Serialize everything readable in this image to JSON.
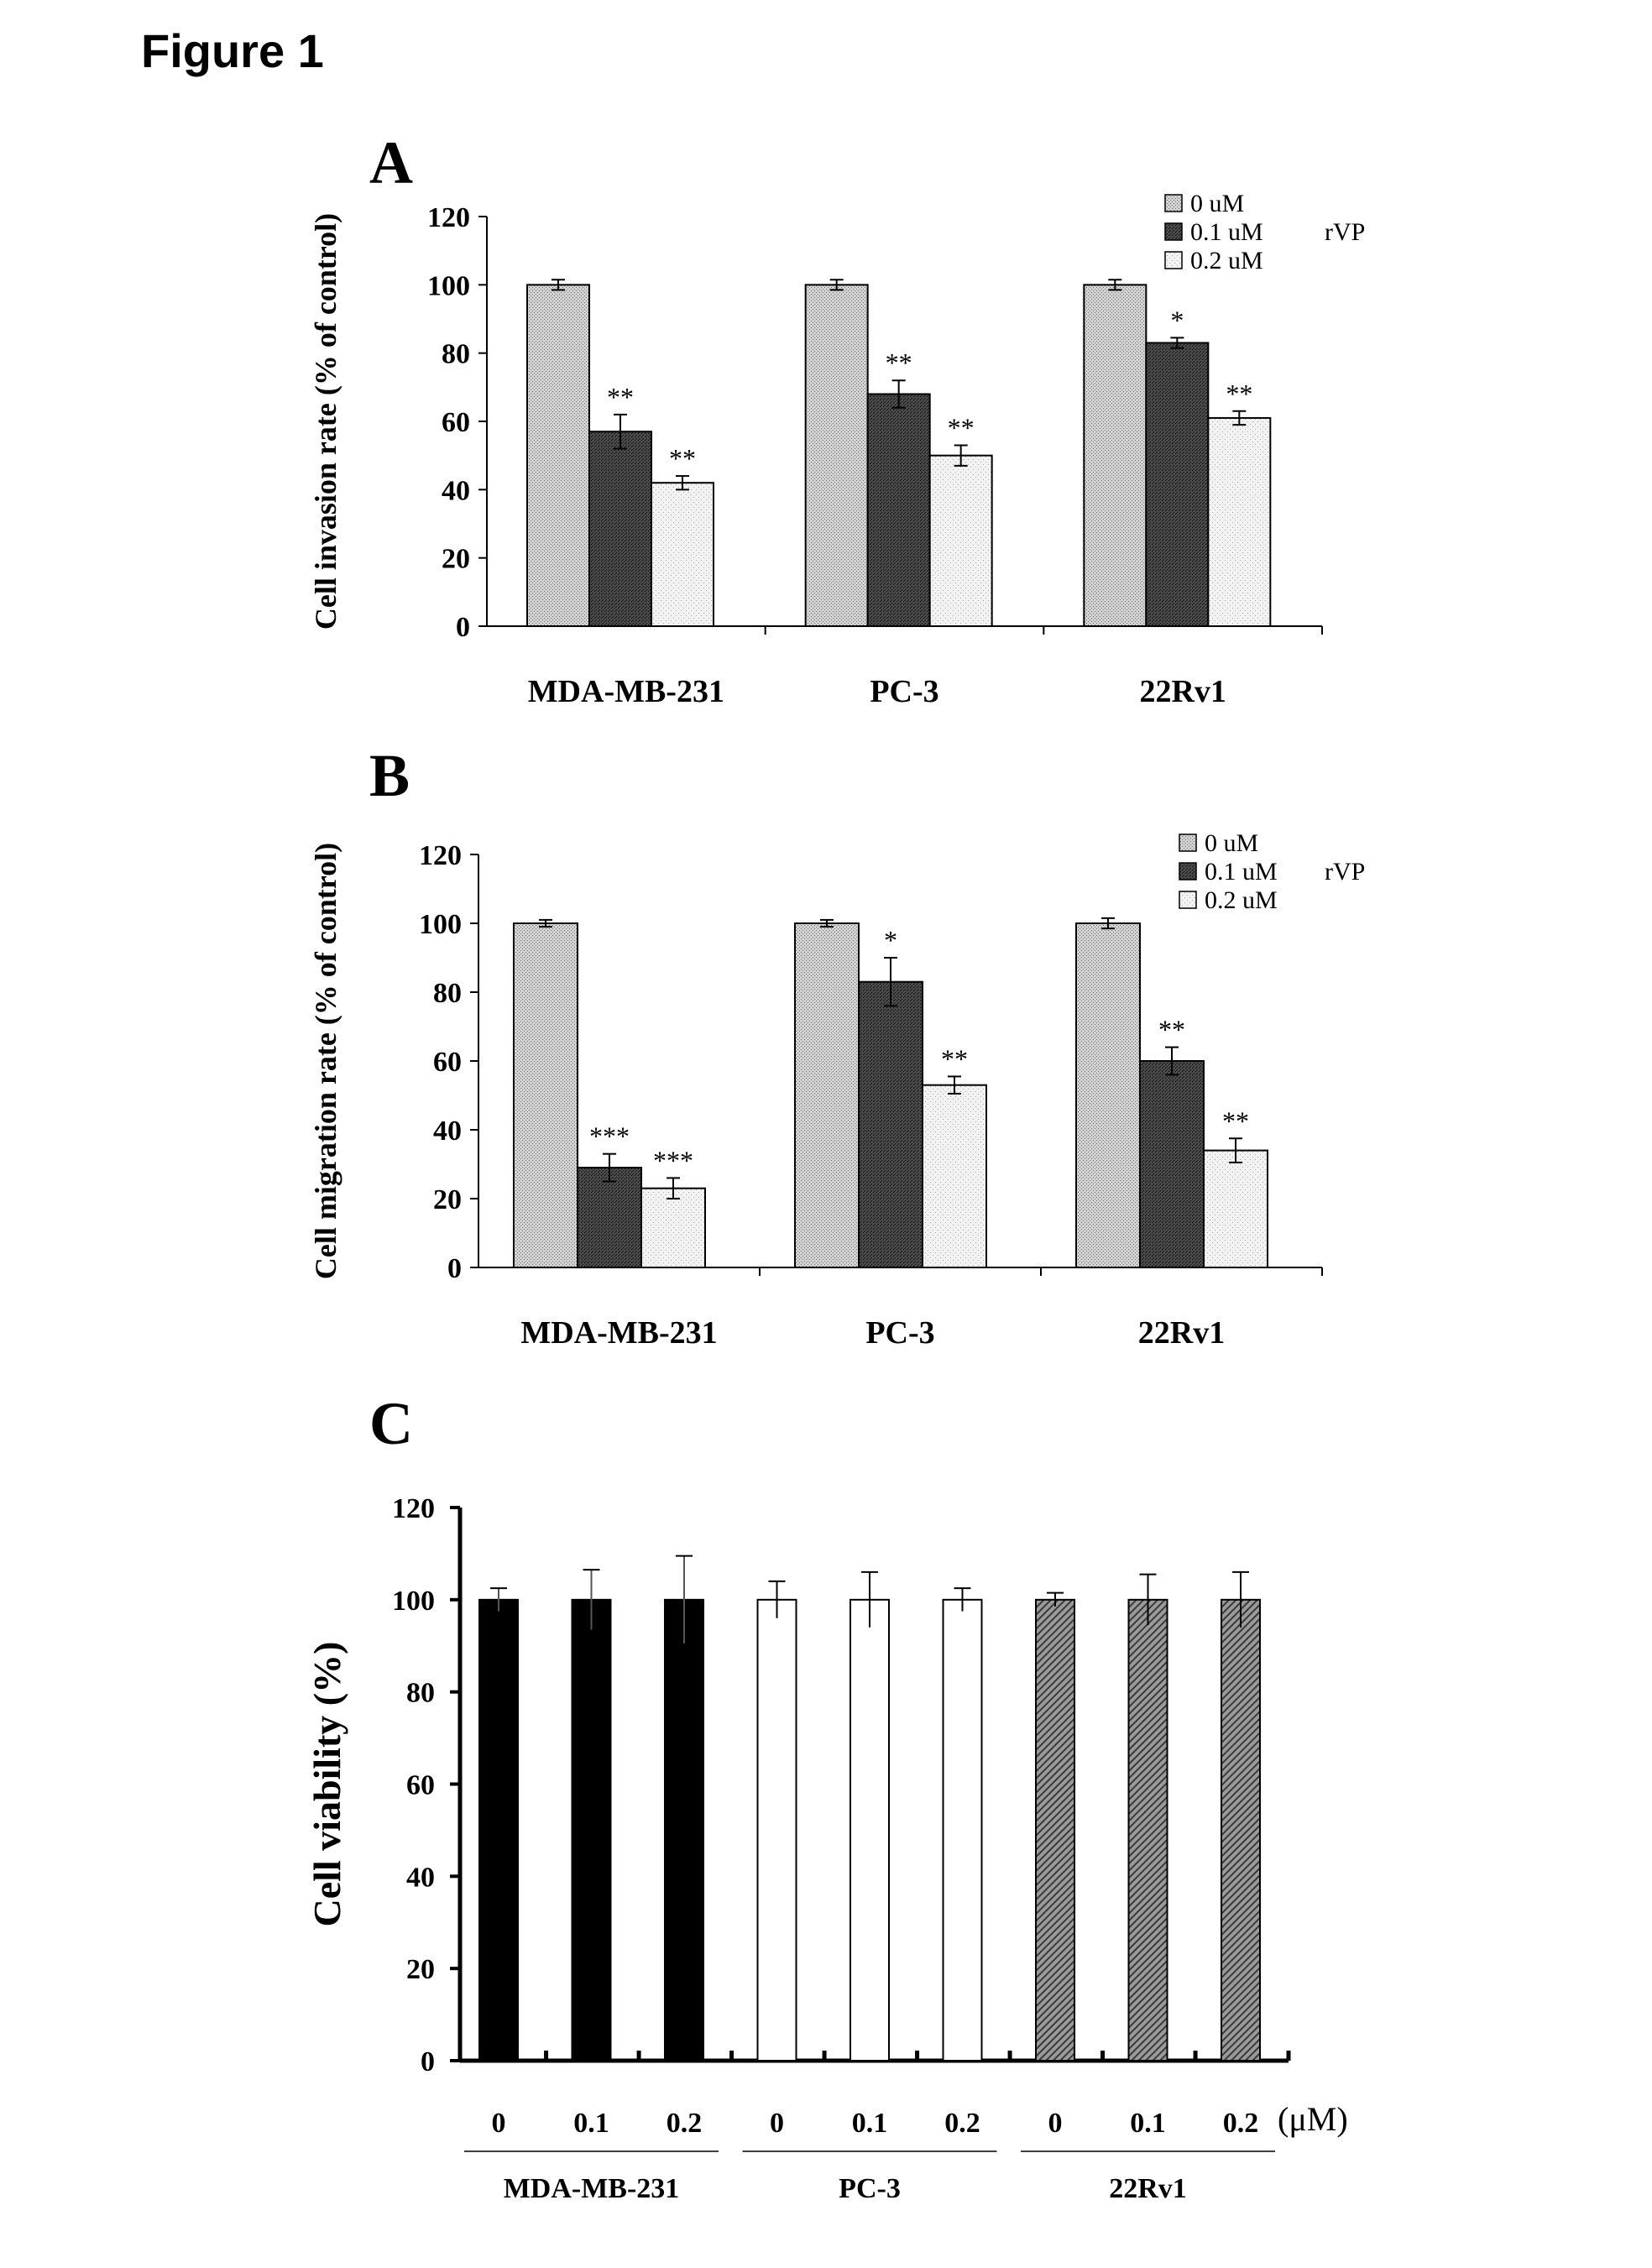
{
  "figure_title": "Figure 1",
  "chart_data": [
    {
      "panel": "A",
      "type": "bar",
      "ylabel": "Cell invasion rate (% of control)",
      "ylim": [
        0,
        120
      ],
      "yticks": [
        "0",
        "20",
        "40",
        "60",
        "80",
        "100",
        "120"
      ],
      "categories": [
        "MDA-MB-231",
        "PC-3",
        "22Rv1"
      ],
      "legend_title": "rVP",
      "legend_position": "top-right",
      "series": [
        {
          "name": "0 uM",
          "pattern": "light-dotted",
          "values": [
            100,
            100,
            100
          ],
          "errors": [
            1.5,
            1.5,
            1.5
          ],
          "sig": [
            "",
            "",
            ""
          ]
        },
        {
          "name": "0.1 uM",
          "pattern": "dark-hatched",
          "values": [
            57,
            68,
            83
          ],
          "errors": [
            5,
            4,
            1.5
          ],
          "sig": [
            "**",
            "**",
            "*"
          ]
        },
        {
          "name": "0.2 uM",
          "pattern": "white-dotted",
          "values": [
            42,
            50,
            61
          ],
          "errors": [
            2,
            3,
            2
          ],
          "sig": [
            "**",
            "**",
            "**"
          ]
        }
      ]
    },
    {
      "panel": "B",
      "type": "bar",
      "ylabel": "Cell migration rate (% of control)",
      "ylim": [
        0,
        120
      ],
      "yticks": [
        "0",
        "20",
        "40",
        "60",
        "80",
        "100",
        "120"
      ],
      "categories": [
        "MDA-MB-231",
        "PC-3",
        "22Rv1"
      ],
      "legend_title": "rVP",
      "legend_position": "top-right",
      "series": [
        {
          "name": "0 uM",
          "pattern": "light-dotted",
          "values": [
            100,
            100,
            100
          ],
          "errors": [
            1,
            1,
            1.5
          ],
          "sig": [
            "",
            "",
            ""
          ]
        },
        {
          "name": "0.1 uM",
          "pattern": "dark-hatched",
          "values": [
            29,
            83,
            60
          ],
          "errors": [
            4,
            7,
            4
          ],
          "sig": [
            "***",
            "*",
            "**"
          ]
        },
        {
          "name": "0.2 uM",
          "pattern": "white-dotted",
          "values": [
            23,
            53,
            34
          ],
          "errors": [
            3,
            2.5,
            3.5
          ],
          "sig": [
            "***",
            "**",
            "**"
          ]
        }
      ]
    },
    {
      "panel": "C",
      "type": "bar",
      "ylabel": "Cell viability (%)",
      "ylim": [
        0,
        120
      ],
      "yticks": [
        "0",
        "20",
        "40",
        "60",
        "80",
        "100",
        "120"
      ],
      "unit": "(μM)",
      "groups": [
        {
          "name": "MDA-MB-231",
          "fill": "black",
          "doses": [
            "0",
            "0.1",
            "0.2"
          ],
          "values": [
            100,
            100,
            100
          ],
          "errors": [
            2.5,
            6.5,
            9.5
          ]
        },
        {
          "name": "PC-3",
          "fill": "white",
          "doses": [
            "0",
            "0.1",
            "0.2"
          ],
          "values": [
            100,
            100,
            100
          ],
          "errors": [
            4,
            6,
            2.5
          ]
        },
        {
          "name": "22Rv1",
          "fill": "hatched",
          "doses": [
            "0",
            "0.1",
            "0.2"
          ],
          "values": [
            100,
            100,
            100
          ],
          "errors": [
            1.5,
            5.5,
            6
          ]
        }
      ]
    }
  ]
}
